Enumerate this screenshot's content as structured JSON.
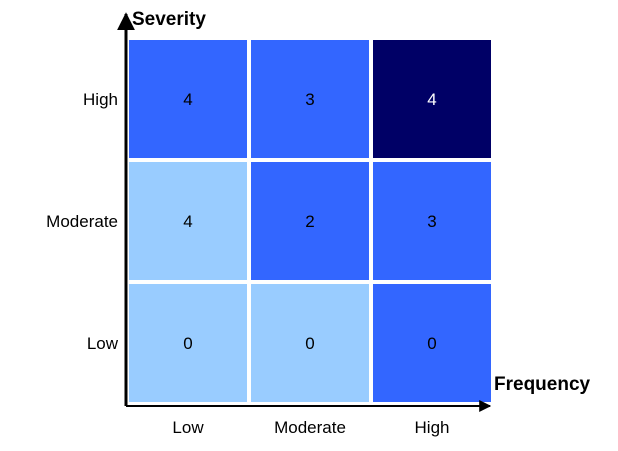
{
  "chart_data": {
    "type": "heatmap",
    "title": "",
    "xlabel": "Frequency",
    "ylabel": "Severity",
    "x_categories": [
      "Low",
      "Moderate",
      "High"
    ],
    "y_categories": [
      "High",
      "Moderate",
      "Low"
    ],
    "values": [
      [
        4,
        3,
        4
      ],
      [
        4,
        2,
        3
      ],
      [
        0,
        0,
        0
      ]
    ],
    "cell_colors": [
      [
        "#3366ff",
        "#3366ff",
        "#000066"
      ],
      [
        "#99ccff",
        "#3366ff",
        "#3366ff"
      ],
      [
        "#99ccff",
        "#99ccff",
        "#3366ff"
      ]
    ],
    "grid": false,
    "legend": "none"
  }
}
